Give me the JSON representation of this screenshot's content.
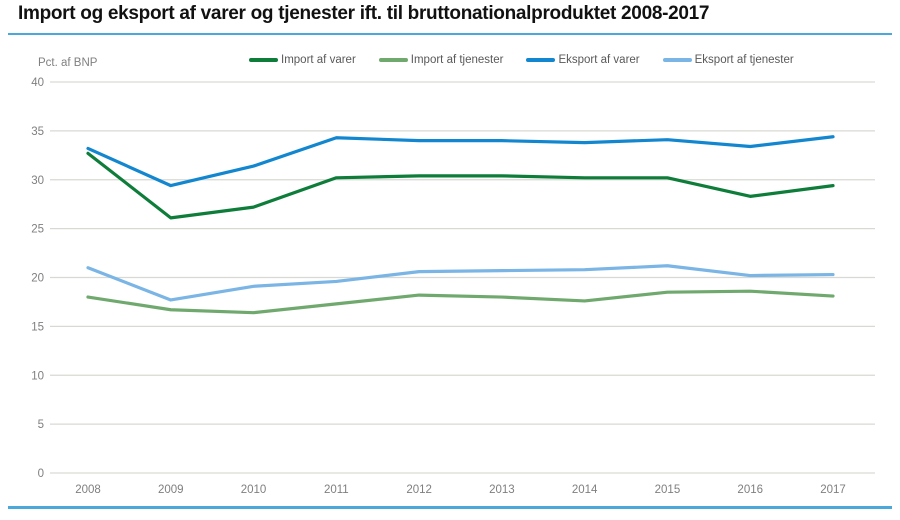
{
  "title": "Import og eksport af varer og tjenester ift. til bruttonationalproduktet 2008-2017",
  "y_axis_unit_label": "Pct. af BNP",
  "colors": {
    "accent_rule": "#4aa9da",
    "gridline": "#d9d9d3",
    "axis_text": "#7f7f7f",
    "legend_text": "#595959",
    "title_text": "#111111"
  },
  "chart_data": {
    "type": "line",
    "title": "Import og eksport af varer og tjenester ift. til bruttonationalproduktet 2008-2017",
    "xlabel": "",
    "ylabel": "Pct. af BNP",
    "x": [
      2008,
      2009,
      2010,
      2011,
      2012,
      2013,
      2014,
      2015,
      2016,
      2017
    ],
    "series": [
      {
        "name": "Import af varer",
        "color": "#0e7d3a",
        "values": [
          32.7,
          26.1,
          27.2,
          30.2,
          30.4,
          30.4,
          30.2,
          30.2,
          28.3,
          29.4
        ]
      },
      {
        "name": "Import af tjenester",
        "color": "#70a96e",
        "values": [
          18.0,
          16.7,
          16.4,
          17.3,
          18.2,
          18.0,
          17.6,
          18.5,
          18.6,
          18.1
        ]
      },
      {
        "name": "Eksport af varer",
        "color": "#1287cf",
        "values": [
          33.2,
          29.4,
          31.4,
          34.3,
          34.0,
          34.0,
          33.8,
          34.1,
          33.4,
          34.4
        ]
      },
      {
        "name": "Eksport af tjenester",
        "color": "#7ab5e5",
        "values": [
          21.0,
          17.7,
          19.1,
          19.6,
          20.6,
          20.7,
          20.8,
          21.2,
          20.2,
          20.3
        ]
      }
    ],
    "ylim": [
      0,
      40
    ],
    "ytick_step": 5,
    "grid": true,
    "legend_position": "top"
  }
}
